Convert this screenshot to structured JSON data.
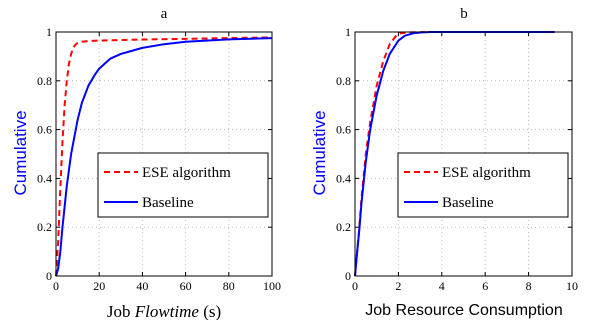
{
  "chart_data": [
    {
      "type": "line",
      "title": "a",
      "ylabel": "Cumulative",
      "xlabel_parts": [
        "Job ",
        "Flowtime",
        " (s)"
      ],
      "xlim": [
        0,
        100
      ],
      "ylim": [
        0,
        1
      ],
      "xticks": [
        "0",
        "20",
        "40",
        "60",
        "80",
        "100"
      ],
      "yticks": [
        "0",
        "0.2",
        "0.4",
        "0.6",
        "0.8",
        "1"
      ],
      "grid": true,
      "legend_position": "center-right",
      "series": [
        {
          "name": "ESE algorithm",
          "color": "#ff0000",
          "style": "dashed",
          "x": [
            0,
            1,
            2,
            3,
            4,
            5,
            6,
            7,
            8,
            9,
            10,
            12,
            15,
            20,
            30,
            40,
            60,
            80,
            100
          ],
          "y": [
            0,
            0.14,
            0.36,
            0.55,
            0.7,
            0.8,
            0.87,
            0.91,
            0.935,
            0.948,
            0.955,
            0.96,
            0.963,
            0.965,
            0.967,
            0.969,
            0.972,
            0.975,
            0.978
          ]
        },
        {
          "name": "Baseline",
          "color": "#0000ff",
          "style": "solid",
          "x": [
            0,
            1,
            2,
            3,
            5,
            7,
            10,
            12,
            15,
            18,
            20,
            25,
            30,
            40,
            50,
            60,
            80,
            100
          ],
          "y": [
            0,
            0.03,
            0.1,
            0.2,
            0.37,
            0.5,
            0.64,
            0.71,
            0.78,
            0.825,
            0.85,
            0.89,
            0.91,
            0.935,
            0.95,
            0.96,
            0.97,
            0.975
          ]
        }
      ]
    },
    {
      "type": "line",
      "title": "b",
      "ylabel": "Cumulative",
      "xlabel": "Job Resource Consumption",
      "xlim": [
        0,
        10
      ],
      "ylim": [
        0,
        1
      ],
      "xticks": [
        "0",
        "2",
        "4",
        "6",
        "8",
        "10"
      ],
      "yticks": [
        "0",
        "0.2",
        "0.4",
        "0.6",
        "0.8",
        "1"
      ],
      "grid": true,
      "legend_position": "center-right",
      "series": [
        {
          "name": "ESE algorithm",
          "color": "#ff0000",
          "style": "dashed",
          "x": [
            0,
            0.05,
            0.1,
            0.2,
            0.3,
            0.5,
            0.7,
            1.0,
            1.3,
            1.6,
            1.9,
            2.1,
            2.4,
            2.8,
            3.5,
            5,
            7,
            9.2
          ],
          "y": [
            0,
            0.05,
            0.1,
            0.2,
            0.32,
            0.5,
            0.63,
            0.78,
            0.88,
            0.95,
            0.985,
            0.995,
            0.998,
            0.999,
            1.0,
            1.0,
            1.0,
            1.0
          ]
        },
        {
          "name": "Baseline",
          "color": "#0000ff",
          "style": "solid",
          "x": [
            0,
            0.05,
            0.1,
            0.2,
            0.3,
            0.5,
            0.7,
            1.0,
            1.3,
            1.6,
            2.0,
            2.3,
            2.7,
            3.0,
            3.5,
            5,
            7,
            9.2
          ],
          "y": [
            0,
            0.05,
            0.1,
            0.19,
            0.3,
            0.47,
            0.6,
            0.74,
            0.84,
            0.91,
            0.965,
            0.985,
            0.995,
            0.998,
            1.0,
            1.0,
            1.0,
            1.0
          ]
        }
      ]
    }
  ],
  "colors": {
    "ylabel": "#0000ff",
    "axis": "#000000",
    "grid": "#bbbbbb"
  }
}
